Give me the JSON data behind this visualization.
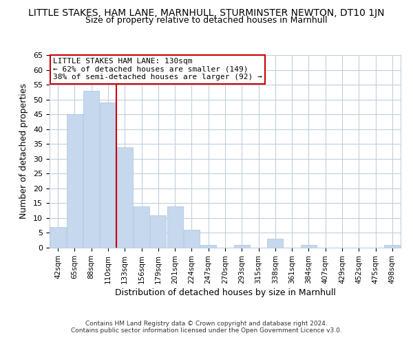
{
  "title": "LITTLE STAKES, HAM LANE, MARNHULL, STURMINSTER NEWTON, DT10 1JN",
  "subtitle": "Size of property relative to detached houses in Marnhull",
  "xlabel": "Distribution of detached houses by size in Marnhull",
  "ylabel": "Number of detached properties",
  "bar_labels": [
    "42sqm",
    "65sqm",
    "88sqm",
    "110sqm",
    "133sqm",
    "156sqm",
    "179sqm",
    "201sqm",
    "224sqm",
    "247sqm",
    "270sqm",
    "293sqm",
    "315sqm",
    "338sqm",
    "361sqm",
    "384sqm",
    "407sqm",
    "429sqm",
    "452sqm",
    "475sqm",
    "498sqm"
  ],
  "bar_values": [
    7,
    45,
    53,
    49,
    34,
    14,
    11,
    14,
    6,
    1,
    0,
    1,
    0,
    3,
    0,
    1,
    0,
    0,
    0,
    0,
    1
  ],
  "bar_color": "#c5d8ed",
  "bar_edge_color": "#aac4df",
  "reference_line_x": 3.5,
  "reference_line_color": "#cc0000",
  "ylim": [
    0,
    65
  ],
  "yticks": [
    0,
    5,
    10,
    15,
    20,
    25,
    30,
    35,
    40,
    45,
    50,
    55,
    60,
    65
  ],
  "annotation_title": "LITTLE STAKES HAM LANE: 130sqm",
  "annotation_line1": "← 62% of detached houses are smaller (149)",
  "annotation_line2": "38% of semi-detached houses are larger (92) →",
  "annotation_box_color": "#ffffff",
  "annotation_box_edge_color": "#cc0000",
  "footer_line1": "Contains HM Land Registry data © Crown copyright and database right 2024.",
  "footer_line2": "Contains public sector information licensed under the Open Government Licence v3.0.",
  "background_color": "#ffffff",
  "grid_color": "#c0cfe0",
  "title_fontsize": 10,
  "subtitle_fontsize": 9
}
